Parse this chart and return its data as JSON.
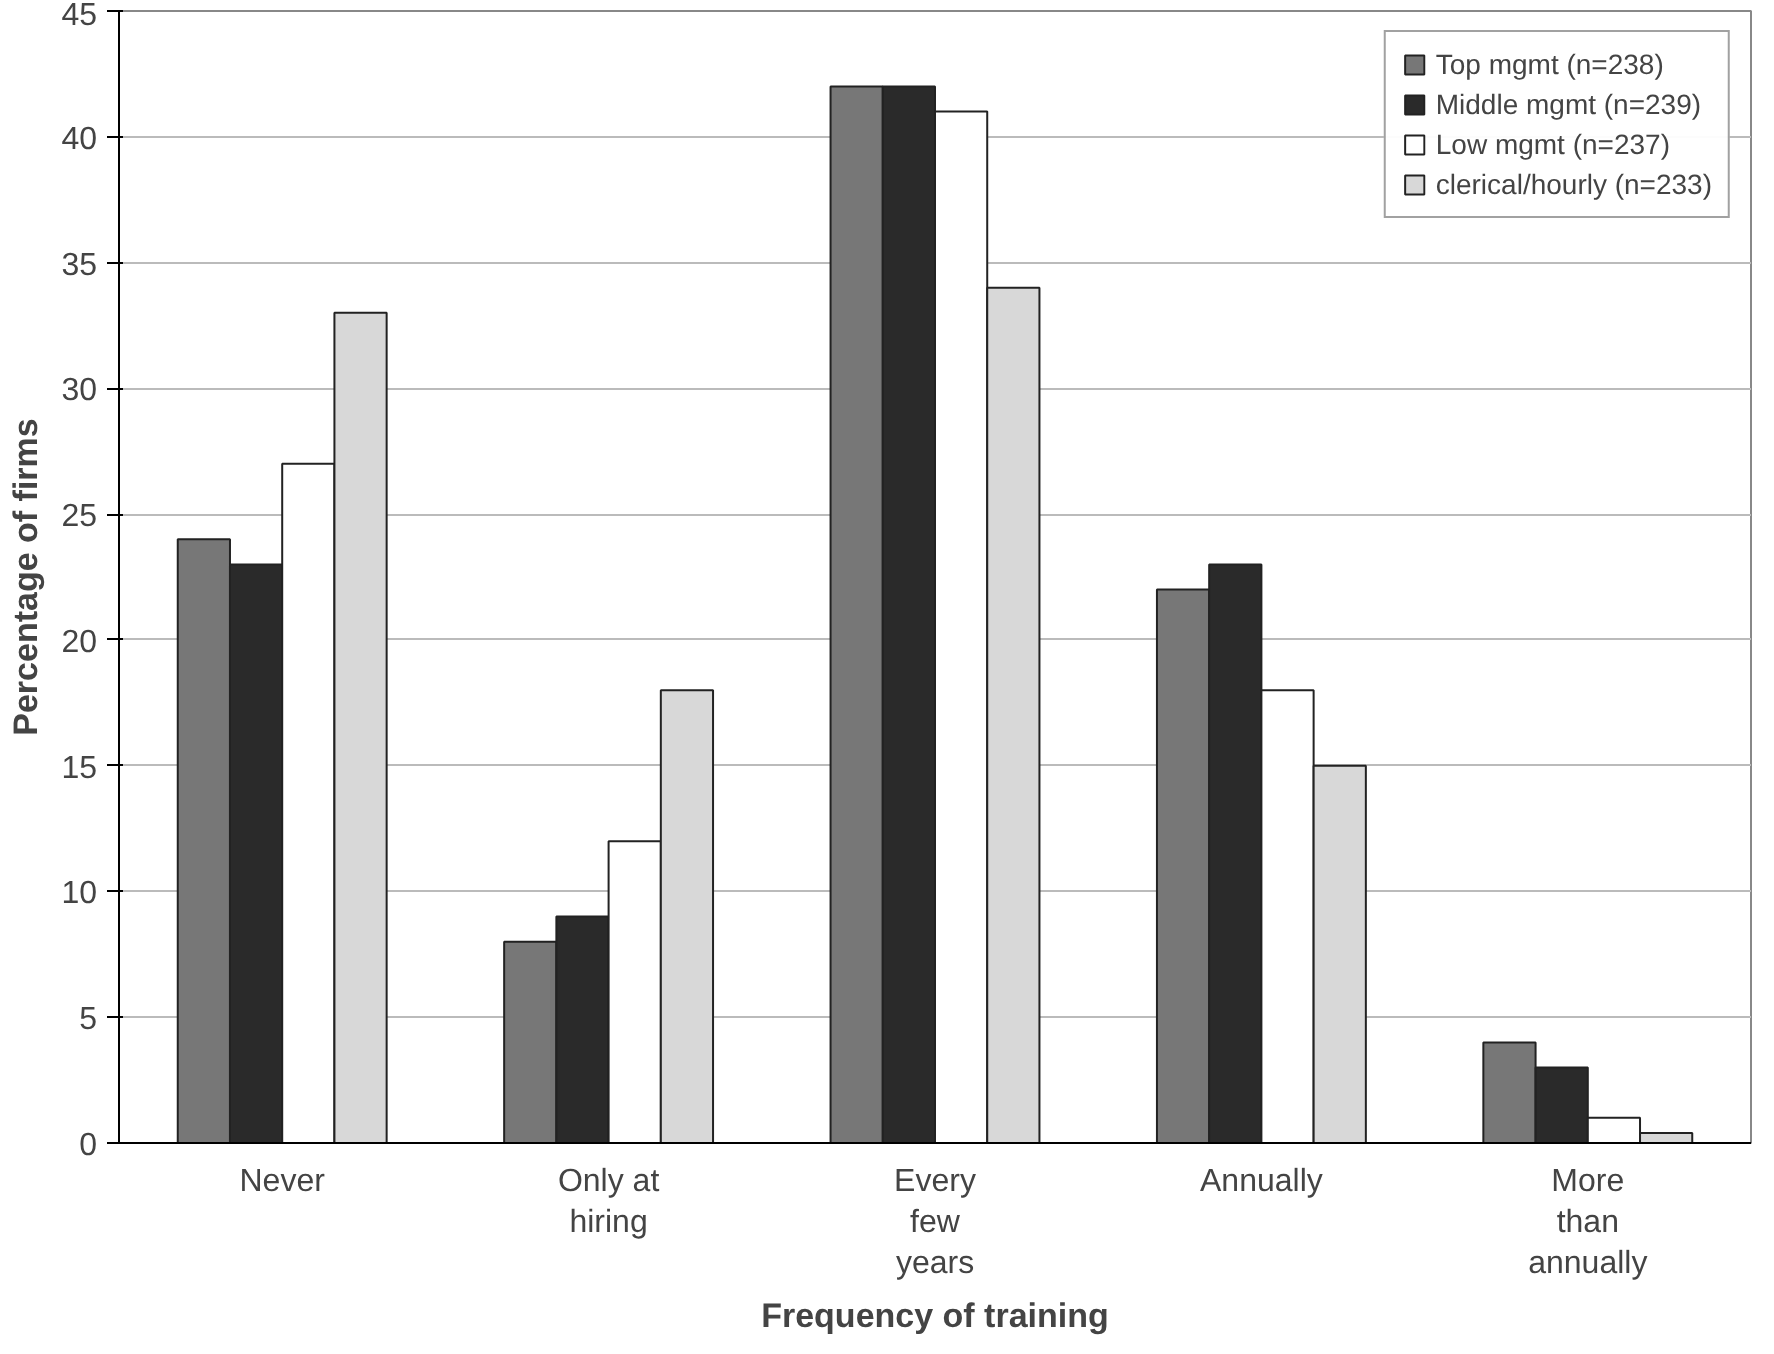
{
  "chart_data": {
    "type": "bar",
    "xlabel": "Frequency of training",
    "ylabel": "Percentage of firms",
    "categories": [
      "Never",
      "Only at\nhiring",
      "Every\nfew\nyears",
      "Annually",
      "More\nthan\nannually"
    ],
    "series": [
      {
        "name": "Top mgmt (n=238)",
        "color": "#777777",
        "values": [
          24,
          8,
          42,
          22,
          4
        ]
      },
      {
        "name": "Middle mgmt (n=239)",
        "color": "#2a2a2a",
        "values": [
          23,
          9,
          42,
          23,
          3
        ]
      },
      {
        "name": "Low mgmt (n=237)",
        "color": "#ffffff",
        "values": [
          27,
          12,
          41,
          18,
          1
        ]
      },
      {
        "name": "clerical/hourly (n=233)",
        "color": "#d8d8d8",
        "values": [
          33,
          18,
          34,
          15,
          0.4
        ]
      }
    ],
    "ylim": [
      0,
      45
    ],
    "yticks": [
      0,
      5,
      10,
      15,
      20,
      25,
      30,
      35,
      40,
      45
    ],
    "grid": "y",
    "legend": "top right"
  }
}
